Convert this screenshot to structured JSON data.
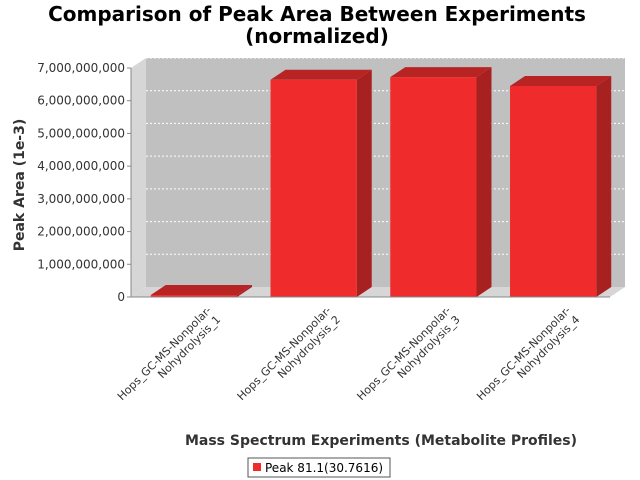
{
  "chart_data": {
    "type": "bar",
    "title_lines": [
      "Comparison of Peak Area Between Experiments",
      "(normalized)"
    ],
    "xlabel": "Mass Spectrum Experiments (Metabolite Profiles)",
    "ylabel": "Peak Area (1e-3)",
    "categories": [
      [
        "Hops_GC-MS-Nonpolar-",
        "Nohydrolysis_1"
      ],
      [
        "Hops_GC-MS-Nonpolar-",
        "Nohydrolysis_2"
      ],
      [
        "Hops_GC-MS-Nonpolar-",
        "Nohydrolysis_3"
      ],
      [
        "Hops_GC-MS-Nonpolar-",
        "Nohydrolysis_4"
      ]
    ],
    "series": [
      {
        "name": "Peak 81.1(30.7616)",
        "values": [
          60000000,
          6640000000,
          6720000000,
          6450000000
        ]
      }
    ],
    "ylim": [
      0,
      7000000000
    ],
    "yticks": [
      {
        "value": 0,
        "label": "0"
      },
      {
        "value": 1000000000,
        "label": "1,000,000,000"
      },
      {
        "value": 2000000000,
        "label": "2,000,000,000"
      },
      {
        "value": 3000000000,
        "label": "3,000,000,000"
      },
      {
        "value": 4000000000,
        "label": "4,000,000,000"
      },
      {
        "value": 5000000000,
        "label": "5,000,000,000"
      },
      {
        "value": 6000000000,
        "label": "6,000,000,000"
      },
      {
        "value": 7000000000,
        "label": "7,000,000,000"
      }
    ],
    "grid": true,
    "legend_position": "bottom",
    "colors": {
      "bar": "#EF2B2B",
      "bar_top": "#B82424",
      "bar_side": "#A82121",
      "plot_bg": "#C0C0C0",
      "wall": "#D6D6D6"
    }
  }
}
